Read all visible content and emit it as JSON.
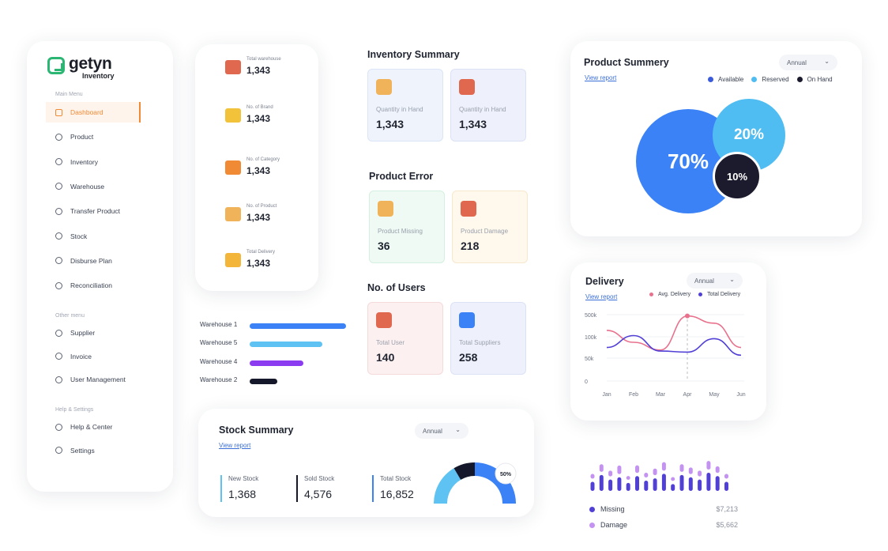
{
  "brand": {
    "name": "getyn",
    "sub": "Inventory",
    "accent": "#2bb673"
  },
  "sidebar": {
    "main_menu_label": "Main Menu",
    "main_items": [
      {
        "label": "Dashboard",
        "icon": "grid-icon",
        "active": true
      },
      {
        "label": "Product",
        "icon": "box-icon"
      },
      {
        "label": "Inventory",
        "icon": "inventory-icon"
      },
      {
        "label": "Warehouse",
        "icon": "location-icon"
      },
      {
        "label": "Transfer Product",
        "icon": "truck-icon"
      },
      {
        "label": "Stock",
        "icon": "stock-icon"
      },
      {
        "label": "Disburse Plan",
        "icon": "plan-icon"
      },
      {
        "label": "Reconciliation",
        "icon": "reconcile-icon"
      }
    ],
    "other_menu_label": "Other menu",
    "other_items": [
      {
        "label": "Supplier",
        "icon": "user-icon"
      },
      {
        "label": "Invoice",
        "icon": "invoice-icon"
      },
      {
        "label": "User Management",
        "icon": "users-icon"
      }
    ],
    "help_label": "Help & Settings",
    "help_items": [
      {
        "label": "Help & Center",
        "icon": "info-icon"
      },
      {
        "label": "Settings",
        "icon": "gear-icon"
      }
    ]
  },
  "stats": [
    {
      "label": "Total warehouse",
      "value": "1,343",
      "icon": "warehouse-icon",
      "color": "#e0684f"
    },
    {
      "label": "No. of Brand",
      "value": "1,343",
      "icon": "brand-icon",
      "color": "#f3c23b"
    },
    {
      "label": "No. of Category",
      "value": "1,343",
      "icon": "category-icon",
      "color": "#f08a34"
    },
    {
      "label": "No. of Product",
      "value": "1,343",
      "icon": "product-icon",
      "color": "#f0b35a"
    },
    {
      "label": "Total Delivery",
      "value": "1,343",
      "icon": "delivery-icon",
      "color": "#f3b63b"
    }
  ],
  "warehouses": [
    {
      "label": "Warehouse 1",
      "value": 1.0,
      "color": "#3b82f6"
    },
    {
      "label": "Warehouse 5",
      "value": 0.75,
      "color": "#5ec3f2"
    },
    {
      "label": "Warehouse 4",
      "value": 0.56,
      "color": "#8b3bf0"
    },
    {
      "label": "Warehouse 2",
      "value": 0.29,
      "color": "#15172a"
    }
  ],
  "inventory_summary": {
    "title": "Inventory Summary",
    "tiles": [
      {
        "label": "Quantity in Hand",
        "value": "1,343",
        "icon": "boxes-icon",
        "color": "#f0b35a"
      },
      {
        "label": "Quantity in Hand",
        "value": "1,343",
        "icon": "parachute-icon",
        "color": "#e0684f"
      }
    ]
  },
  "product_error": {
    "title": "Product Error",
    "tiles": [
      {
        "label": "Product Missing",
        "value": "36",
        "icon": "missing-box-icon",
        "color": "#f0b35a"
      },
      {
        "label": "Product Damage",
        "value": "218",
        "icon": "damaged-box-icon",
        "color": "#e0684f"
      }
    ]
  },
  "users": {
    "title": "No. of Users",
    "tiles": [
      {
        "label": "Total User",
        "value": "140",
        "icon": "team-icon",
        "color": "#e0684f"
      },
      {
        "label": "Total Suppliers",
        "value": "258",
        "icon": "supplier-icon",
        "color": "#3b82f6"
      }
    ]
  },
  "product_summery": {
    "title": "Product Summery",
    "view_report": "View report",
    "period": "Annual",
    "legend": [
      {
        "label": "Available",
        "color": "#3b5bdb"
      },
      {
        "label": "Reserved",
        "color": "#4fbdf2"
      },
      {
        "label": "On Hand",
        "color": "#1c1b2e"
      }
    ],
    "chart_data": {
      "type": "bubble",
      "categories": [
        "Available",
        "Reserved",
        "On Hand"
      ],
      "values": [
        70,
        20,
        10
      ],
      "labels": [
        "70%",
        "20%",
        "10%"
      ]
    }
  },
  "delivery": {
    "title": "Delivery",
    "view_report": "View report",
    "period": "Annual",
    "chart_data": {
      "type": "line",
      "categories": [
        "Jan",
        "Feb",
        "Mar",
        "Apr",
        "May",
        "Jun"
      ],
      "y_ticks": [
        "500k",
        "100k",
        "50k",
        "0"
      ],
      "series": [
        {
          "name": "Avg. Delivery",
          "color": "#e8718d",
          "values": [
            98,
            75,
            60,
            126,
            112,
            65
          ]
        },
        {
          "name": "Total Delivery",
          "color": "#5140d6",
          "values": [
            65,
            88,
            58,
            56,
            82,
            50
          ]
        }
      ],
      "grid": true,
      "legend": "top-right",
      "highlight_index": 3
    }
  },
  "stock_summary": {
    "title": "Stock Summary",
    "view_report": "View report",
    "period": "Annual",
    "items": [
      {
        "label": "New Stock",
        "value": "1,368",
        "color": "#5ec3f2"
      },
      {
        "label": "Sold Stock",
        "value": "4,576",
        "color": "#15172a"
      },
      {
        "label": "Total Stock",
        "value": "16,852",
        "color": "#3b82f6"
      }
    ],
    "gauge_label": "50%",
    "chart_data": {
      "type": "pie",
      "categories": [
        "New Stock",
        "Sold Stock",
        "Total Stock"
      ],
      "values": [
        33,
        17,
        50
      ]
    }
  },
  "missing_damage": {
    "items": [
      {
        "label": "Missing",
        "value": "$7,213",
        "color": "#5140d6"
      },
      {
        "label": "Damage",
        "value": "$5,662",
        "color": "#c493f2"
      }
    ],
    "chart_data": {
      "type": "bar",
      "series": [
        {
          "name": "Missing",
          "values": [
            8,
            14,
            10,
            12,
            7,
            13,
            9,
            11,
            15,
            6,
            14,
            12,
            10,
            16,
            13,
            8
          ]
        },
        {
          "name": "Damage",
          "values": [
            5,
            8,
            6,
            9,
            4,
            8,
            5,
            7,
            9,
            4,
            8,
            7,
            6,
            9,
            7,
            5
          ]
        }
      ]
    }
  }
}
